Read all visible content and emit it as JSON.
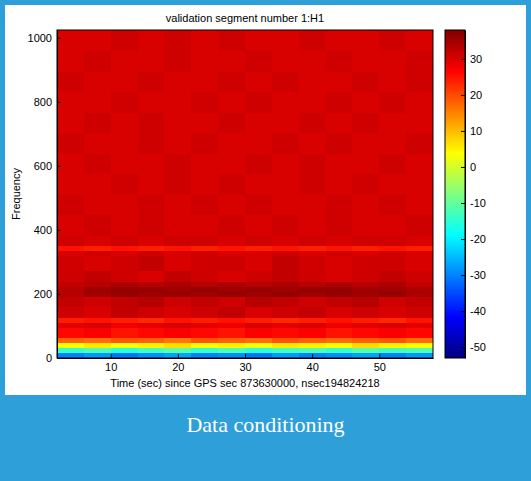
{
  "chart_data": {
    "type": "heatmap",
    "title": "validation segment number 1:H1",
    "x_label": "Time (sec) since GPS sec 873630000, nsec194824218",
    "y_label": "Frequency",
    "xlim": [
      2,
      58
    ],
    "xticks": [
      10,
      20,
      30,
      40,
      50
    ],
    "ylim": [
      0,
      1024
    ],
    "yticks": [
      0,
      200,
      400,
      600,
      800,
      1000
    ],
    "x_bins": [
      2,
      6,
      10,
      14,
      18,
      22,
      26,
      30,
      34,
      38,
      42,
      46,
      50,
      54,
      58
    ],
    "y_bins": [
      0,
      16,
      32,
      48,
      64,
      96,
      112,
      128,
      160,
      192,
      208,
      224,
      240,
      272,
      320,
      336,
      352,
      384,
      448,
      512,
      576,
      640,
      704,
      768,
      832,
      896,
      960,
      1024
    ],
    "cells": [
      [
        -30,
        -28,
        -31,
        -29,
        -27,
        -30,
        -29,
        -31,
        -28,
        -30,
        -29,
        -27,
        -30,
        -28
      ],
      [
        -14,
        -12,
        -15,
        -13,
        -11,
        -14,
        -12,
        -15,
        -13,
        -12,
        -14,
        -11,
        -13,
        -12
      ],
      [
        4,
        6,
        3,
        5,
        7,
        4,
        5,
        3,
        6,
        5,
        4,
        7,
        5,
        4
      ],
      [
        18,
        17,
        19,
        18,
        16,
        19,
        18,
        17,
        19,
        18,
        17,
        18,
        19,
        17
      ],
      [
        26,
        27,
        25,
        26,
        27,
        26,
        25,
        27,
        26,
        27,
        25,
        26,
        27,
        26
      ],
      [
        29,
        30,
        28,
        29,
        30,
        29,
        28,
        30,
        29,
        30,
        28,
        29,
        30,
        29
      ],
      [
        24,
        25,
        24,
        23,
        25,
        24,
        25,
        24,
        23,
        24,
        25,
        24,
        23,
        25
      ],
      [
        31,
        30,
        32,
        31,
        30,
        31,
        32,
        30,
        31,
        32,
        30,
        31,
        30,
        31
      ],
      [
        32,
        31,
        32,
        33,
        31,
        32,
        31,
        33,
        32,
        31,
        32,
        33,
        31,
        32
      ],
      [
        33,
        35,
        36,
        35,
        36,
        35,
        36,
        35,
        36,
        35,
        36,
        35,
        36,
        34
      ],
      [
        33,
        35,
        36,
        36,
        35,
        36,
        35,
        36,
        35,
        36,
        36,
        35,
        35,
        34
      ],
      [
        32,
        33,
        34,
        33,
        34,
        33,
        34,
        33,
        34,
        33,
        34,
        33,
        34,
        32
      ],
      [
        31,
        32,
        31,
        30,
        32,
        31,
        30,
        31,
        32,
        31,
        30,
        31,
        32,
        31
      ],
      [
        31,
        30,
        31,
        32,
        30,
        31,
        31,
        30,
        32,
        31,
        30,
        31,
        31,
        30
      ],
      [
        30,
        31,
        30,
        31,
        30,
        31,
        30,
        30,
        31,
        30,
        31,
        30,
        31,
        30
      ],
      [
        25,
        24,
        25,
        24,
        25,
        24,
        25,
        24,
        25,
        24,
        25,
        24,
        25,
        24
      ],
      [
        31,
        30,
        31,
        30,
        31,
        31,
        30,
        31,
        30,
        31,
        30,
        31,
        31,
        30
      ],
      [
        30,
        31,
        30,
        31,
        30,
        30,
        31,
        30,
        31,
        30,
        31,
        30,
        30,
        31
      ],
      [
        31,
        30,
        30,
        31,
        30,
        31,
        30,
        31,
        30,
        30,
        31,
        30,
        31,
        30
      ],
      [
        30,
        30,
        31,
        30,
        31,
        30,
        31,
        30,
        30,
        31,
        30,
        31,
        30,
        30
      ],
      [
        30,
        31,
        30,
        30,
        31,
        30,
        30,
        31,
        30,
        31,
        30,
        30,
        31,
        30
      ],
      [
        31,
        30,
        30,
        31,
        30,
        31,
        30,
        30,
        31,
        30,
        31,
        30,
        30,
        31
      ],
      [
        30,
        31,
        30,
        31,
        30,
        30,
        31,
        30,
        30,
        31,
        30,
        31,
        30,
        30
      ],
      [
        30,
        30,
        31,
        30,
        30,
        31,
        30,
        31,
        30,
        30,
        31,
        30,
        31,
        30
      ],
      [
        31,
        30,
        30,
        31,
        30,
        30,
        31,
        30,
        31,
        30,
        30,
        31,
        30,
        31
      ],
      [
        30,
        31,
        30,
        30,
        31,
        30,
        30,
        31,
        30,
        30,
        31,
        30,
        30,
        31
      ],
      [
        30,
        30,
        31,
        30,
        31,
        30,
        31,
        30,
        30,
        31,
        30,
        30,
        31,
        30
      ]
    ],
    "colorbar_range": [
      -53,
      38
    ],
    "colorbar_ticks": [
      -50,
      -40,
      -30,
      -20,
      -10,
      0,
      10,
      20,
      30
    ]
  },
  "caption": "Data conditioning"
}
